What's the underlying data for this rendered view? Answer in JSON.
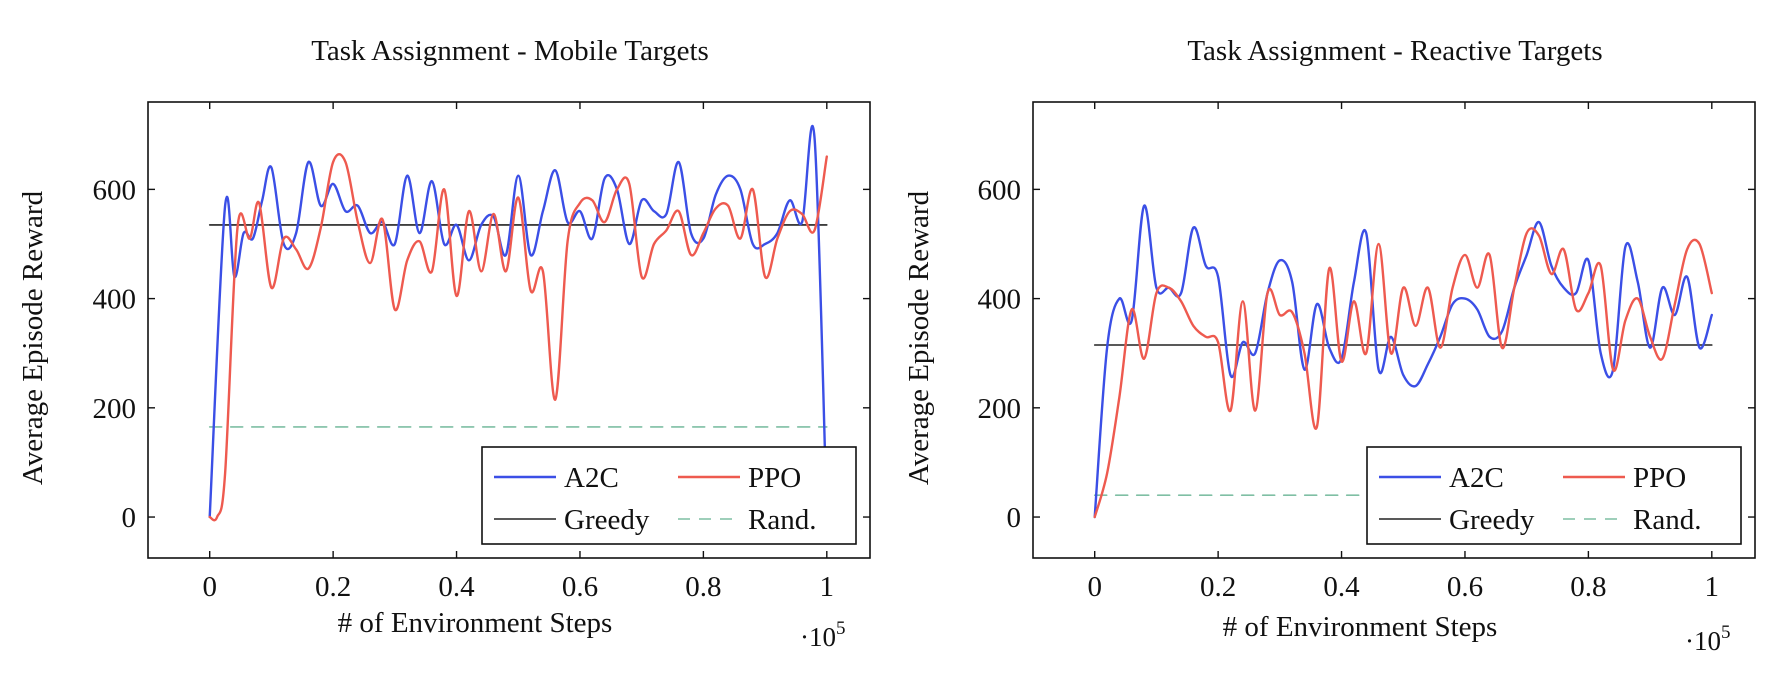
{
  "chart_data": [
    {
      "type": "line",
      "title": "Task Assignment - Mobile Targets",
      "xlabel": "# of Environment Steps",
      "ylabel": "Average Episode Reward",
      "x_scale_label": "·10",
      "x_scale_exp": "5",
      "xlim": [
        -0.1,
        1.07
      ],
      "ylim": [
        -75,
        760
      ],
      "xticks": [
        0,
        0.2,
        0.4,
        0.6,
        0.8,
        1
      ],
      "xtick_labels": [
        "0",
        "0.2",
        "0.4",
        "0.6",
        "0.8",
        "1"
      ],
      "yticks": [
        0,
        200,
        400,
        600
      ],
      "ytick_labels": [
        "0",
        "200",
        "400",
        "600"
      ],
      "legend_position": "bottom-right",
      "legend_labels": {
        "a2c": "A2C",
        "ppo": "PPO",
        "greedy": "Greedy",
        "rand": "Rand."
      },
      "series": [
        {
          "name": "A2C",
          "color": "#3b4fe6",
          "x": [
            0,
            0.025,
            0.04,
            0.055,
            0.07,
            0.085,
            0.1,
            0.12,
            0.14,
            0.16,
            0.18,
            0.2,
            0.22,
            0.24,
            0.26,
            0.28,
            0.3,
            0.32,
            0.34,
            0.36,
            0.38,
            0.4,
            0.42,
            0.44,
            0.46,
            0.48,
            0.5,
            0.52,
            0.54,
            0.56,
            0.58,
            0.6,
            0.62,
            0.64,
            0.66,
            0.68,
            0.7,
            0.72,
            0.74,
            0.76,
            0.78,
            0.8,
            0.82,
            0.84,
            0.86,
            0.88,
            0.9,
            0.92,
            0.94,
            0.96,
            0.98,
            1
          ],
          "y": [
            0,
            570,
            440,
            520,
            510,
            580,
            640,
            500,
            520,
            650,
            570,
            610,
            560,
            570,
            520,
            540,
            500,
            625,
            520,
            615,
            500,
            535,
            470,
            535,
            550,
            480,
            625,
            480,
            560,
            635,
            540,
            560,
            510,
            620,
            600,
            500,
            580,
            560,
            555,
            650,
            520,
            510,
            590,
            625,
            600,
            500,
            500,
            520,
            580,
            540,
            695,
            0
          ]
        },
        {
          "name": "PPO",
          "color": "#ee5a4f",
          "x": [
            0,
            0.012,
            0.025,
            0.045,
            0.065,
            0.08,
            0.1,
            0.12,
            0.14,
            0.16,
            0.18,
            0.2,
            0.22,
            0.24,
            0.26,
            0.28,
            0.3,
            0.32,
            0.34,
            0.36,
            0.38,
            0.4,
            0.42,
            0.44,
            0.46,
            0.48,
            0.5,
            0.52,
            0.54,
            0.56,
            0.58,
            0.6,
            0.62,
            0.64,
            0.66,
            0.68,
            0.7,
            0.72,
            0.74,
            0.76,
            0.78,
            0.8,
            0.82,
            0.84,
            0.86,
            0.88,
            0.9,
            0.92,
            0.94,
            0.96,
            0.98,
            1
          ],
          "y": [
            0,
            0,
            80,
            530,
            510,
            575,
            420,
            510,
            490,
            455,
            530,
            650,
            650,
            540,
            465,
            545,
            380,
            470,
            505,
            450,
            600,
            405,
            560,
            450,
            555,
            450,
            585,
            415,
            450,
            215,
            505,
            575,
            580,
            540,
            600,
            610,
            440,
            500,
            525,
            560,
            480,
            520,
            565,
            570,
            510,
            600,
            440,
            510,
            560,
            555,
            525,
            660
          ]
        },
        {
          "name": "Greedy",
          "color": "#222222",
          "x": [
            0,
            1
          ],
          "y": [
            535,
            535
          ]
        },
        {
          "name": "Rand.",
          "color": "#7fbfa4",
          "x": [
            0,
            1
          ],
          "y": [
            165,
            165
          ]
        }
      ]
    },
    {
      "type": "line",
      "title": "Task Assignment - Reactive Targets",
      "xlabel": "# of Environment Steps",
      "ylabel": "Average Episode Reward",
      "x_scale_label": "·10",
      "x_scale_exp": "5",
      "xlim": [
        -0.1,
        1.07
      ],
      "ylim": [
        -75,
        760
      ],
      "xticks": [
        0,
        0.2,
        0.4,
        0.6,
        0.8,
        1
      ],
      "xtick_labels": [
        "0",
        "0.2",
        "0.4",
        "0.6",
        "0.8",
        "1"
      ],
      "yticks": [
        0,
        200,
        400,
        600
      ],
      "ytick_labels": [
        "0",
        "200",
        "400",
        "600"
      ],
      "legend_position": "bottom-right",
      "legend_labels": {
        "a2c": "A2C",
        "ppo": "PPO",
        "greedy": "Greedy",
        "rand": "Rand."
      },
      "series": [
        {
          "name": "A2C",
          "color": "#3b4fe6",
          "x": [
            0,
            0.02,
            0.04,
            0.06,
            0.08,
            0.1,
            0.12,
            0.14,
            0.16,
            0.18,
            0.2,
            0.22,
            0.24,
            0.26,
            0.28,
            0.3,
            0.32,
            0.34,
            0.36,
            0.38,
            0.4,
            0.42,
            0.44,
            0.46,
            0.48,
            0.5,
            0.52,
            0.54,
            0.56,
            0.58,
            0.6,
            0.62,
            0.64,
            0.66,
            0.68,
            0.7,
            0.72,
            0.74,
            0.76,
            0.78,
            0.8,
            0.82,
            0.84,
            0.86,
            0.88,
            0.9,
            0.92,
            0.94,
            0.96,
            0.98,
            1
          ],
          "y": [
            0,
            310,
            400,
            360,
            570,
            420,
            420,
            410,
            530,
            460,
            440,
            260,
            320,
            300,
            410,
            470,
            430,
            270,
            390,
            310,
            290,
            430,
            520,
            270,
            330,
            260,
            240,
            280,
            330,
            390,
            400,
            380,
            330,
            340,
            420,
            480,
            540,
            460,
            420,
            410,
            470,
            300,
            270,
            495,
            430,
            310,
            420,
            370,
            440,
            310,
            370
          ]
        },
        {
          "name": "PPO",
          "color": "#ee5a4f",
          "x": [
            0,
            0.02,
            0.04,
            0.06,
            0.08,
            0.1,
            0.12,
            0.14,
            0.16,
            0.18,
            0.2,
            0.22,
            0.24,
            0.26,
            0.28,
            0.3,
            0.32,
            0.34,
            0.36,
            0.38,
            0.4,
            0.42,
            0.44,
            0.46,
            0.48,
            0.5,
            0.52,
            0.54,
            0.56,
            0.58,
            0.6,
            0.62,
            0.64,
            0.66,
            0.68,
            0.7,
            0.72,
            0.74,
            0.76,
            0.78,
            0.8,
            0.82,
            0.84,
            0.86,
            0.88,
            0.9,
            0.92,
            0.94,
            0.96,
            0.98,
            1
          ],
          "y": [
            0,
            80,
            220,
            380,
            290,
            410,
            420,
            395,
            350,
            330,
            320,
            195,
            395,
            195,
            410,
            370,
            375,
            300,
            165,
            455,
            285,
            395,
            300,
            500,
            300,
            420,
            350,
            420,
            310,
            420,
            480,
            420,
            480,
            310,
            420,
            520,
            515,
            445,
            490,
            380,
            410,
            460,
            270,
            360,
            400,
            330,
            290,
            390,
            490,
            500,
            410
          ]
        },
        {
          "name": "Greedy",
          "color": "#222222",
          "x": [
            0,
            1
          ],
          "y": [
            315,
            315
          ]
        },
        {
          "name": "Rand.",
          "color": "#7fbfa4",
          "x": [
            0,
            1
          ],
          "y": [
            40,
            40
          ]
        }
      ]
    }
  ]
}
